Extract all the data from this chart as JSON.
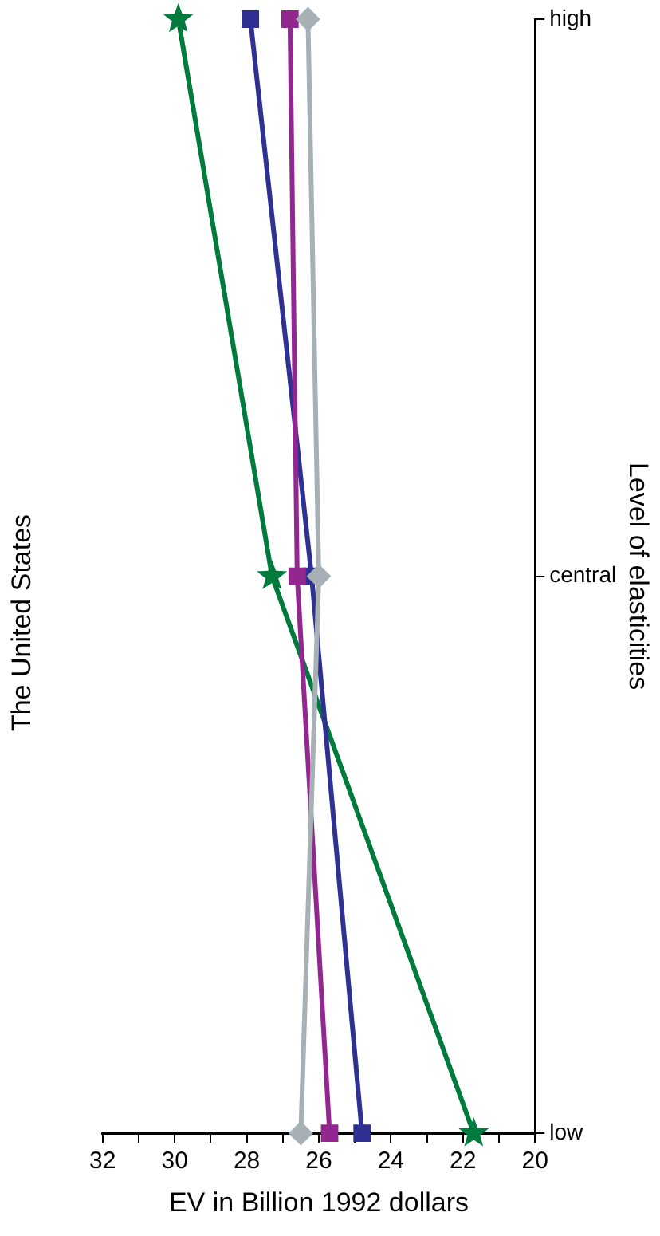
{
  "chart_data": {
    "type": "line",
    "orientation": "horizontal",
    "title": "The United States",
    "xlabel": "EV in Billion 1992 dollars",
    "ylabel": "Level of elasticities",
    "categories": [
      "high",
      "central",
      "low"
    ],
    "series": [
      {
        "color": "#007a3d",
        "marker": "star",
        "values": [
          29.9,
          27.3,
          21.7
        ]
      },
      {
        "color": "#2e3192",
        "marker": "square",
        "values": [
          27.9,
          26.2,
          24.8
        ]
      },
      {
        "color": "#92278f",
        "marker": "square",
        "values": [
          26.8,
          26.6,
          25.7
        ]
      },
      {
        "color": "#a7b0b5",
        "marker": "diamond",
        "values": [
          26.3,
          26.0,
          26.5
        ]
      }
    ],
    "xlim": [
      32,
      20
    ],
    "xticks": [
      32,
      {
        "value": 31,
        "label": null
      },
      30,
      {
        "value": 29,
        "label": null
      },
      28,
      {
        "value": 27,
        "label": null
      },
      26,
      {
        "value": 25,
        "label": null
      },
      24,
      {
        "value": 23,
        "label": null
      },
      22,
      {
        "value": 21,
        "label": null
      },
      20
    ],
    "grid": false,
    "legend": false,
    "line_style": "solid"
  }
}
